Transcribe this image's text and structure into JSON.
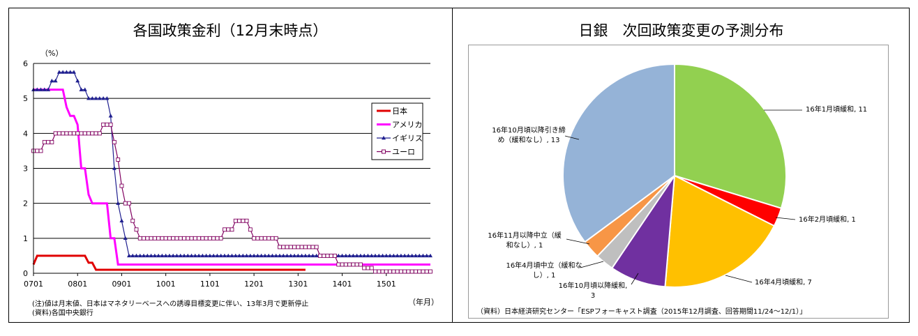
{
  "left_panel": {
    "title": "各国政策金利（12月末時点）",
    "note_line1": "(注)値は月末値、日本はマネタリーベースへの誘導目標変更に伴い、13年3月で更新停止",
    "note_line2": "(資料)各国中央銀行",
    "xunit": "（年月）"
  },
  "right_panel": {
    "title": "日銀　次回政策変更の予測分布",
    "source": "（資料）日本経済研究センター「ESPフォーキャスト調査（2015年12月調査、回答期間11/24～12/1）」"
  },
  "chart_data": [
    {
      "type": "line",
      "title": "各国政策金利（12月末時点）",
      "ylabel": "（%）",
      "xlabel": "（年月）",
      "ylim": [
        0,
        6
      ],
      "xlim": [
        0,
        108
      ],
      "yticks": [
        "0",
        "1",
        "2",
        "3",
        "4",
        "5",
        "6"
      ],
      "xtick_labels": [
        "0701",
        "0801",
        "0901",
        "1001",
        "1101",
        "1201",
        "1301",
        "1401",
        "1501"
      ],
      "grid": true,
      "legend_position": "right",
      "series": [
        {
          "name": "日本",
          "color": "#e00000",
          "marker": "none",
          "points": [
            [
              0,
              0.25
            ],
            [
              1,
              0.5
            ],
            [
              14,
              0.5
            ],
            [
              15,
              0.3
            ],
            [
              16,
              0.3
            ],
            [
              17,
              0.1
            ],
            [
              74,
              0.1
            ]
          ]
        },
        {
          "name": "アメリカ",
          "color": "#ff00ff",
          "marker": "none",
          "points": [
            [
              0,
              5.25
            ],
            [
              8,
              5.25
            ],
            [
              9,
              4.75
            ],
            [
              10,
              4.5
            ],
            [
              11,
              4.5
            ],
            [
              12,
              4.25
            ],
            [
              13,
              3.0
            ],
            [
              14,
              3.0
            ],
            [
              15,
              2.25
            ],
            [
              16,
              2.0
            ],
            [
              20,
              2.0
            ],
            [
              21,
              1.0
            ],
            [
              22,
              1.0
            ],
            [
              23,
              0.25
            ],
            [
              108,
              0.25
            ]
          ]
        },
        {
          "name": "イギリス",
          "color": "#1f1f8f",
          "marker": "triangle",
          "points": [
            [
              0,
              5.25
            ],
            [
              4,
              5.25
            ],
            [
              5,
              5.5
            ],
            [
              6,
              5.5
            ],
            [
              7,
              5.75
            ],
            [
              11,
              5.75
            ],
            [
              12,
              5.5
            ],
            [
              13,
              5.25
            ],
            [
              14,
              5.25
            ],
            [
              15,
              5.0
            ],
            [
              20,
              5.0
            ],
            [
              21,
              4.5
            ],
            [
              22,
              3.0
            ],
            [
              23,
              2.0
            ],
            [
              24,
              1.5
            ],
            [
              25,
              1.0
            ],
            [
              26,
              0.5
            ],
            [
              108,
              0.5
            ]
          ]
        },
        {
          "name": "ユーロ",
          "color": "#800060",
          "marker": "square",
          "points": [
            [
              0,
              3.5
            ],
            [
              2,
              3.5
            ],
            [
              3,
              3.75
            ],
            [
              5,
              3.75
            ],
            [
              6,
              4.0
            ],
            [
              18,
              4.0
            ],
            [
              19,
              4.25
            ],
            [
              21,
              4.25
            ],
            [
              22,
              3.75
            ],
            [
              23,
              3.25
            ],
            [
              24,
              2.5
            ],
            [
              25,
              2.0
            ],
            [
              26,
              2.0
            ],
            [
              27,
              1.5
            ],
            [
              28,
              1.25
            ],
            [
              29,
              1.0
            ],
            [
              51,
              1.0
            ],
            [
              52,
              1.25
            ],
            [
              54,
              1.25
            ],
            [
              55,
              1.5
            ],
            [
              58,
              1.5
            ],
            [
              59,
              1.25
            ],
            [
              60,
              1.0
            ],
            [
              66,
              1.0
            ],
            [
              67,
              0.75
            ],
            [
              77,
              0.75
            ],
            [
              78,
              0.5
            ],
            [
              82,
              0.5
            ],
            [
              83,
              0.25
            ],
            [
              89,
              0.25
            ],
            [
              90,
              0.15
            ],
            [
              92,
              0.15
            ],
            [
              93,
              0.05
            ],
            [
              108,
              0.05
            ]
          ]
        }
      ]
    },
    {
      "type": "pie",
      "title": "日銀　次回政策変更の予測分布",
      "slices": [
        {
          "label": "16年1月頃緩和, 11",
          "value": 11,
          "color": "#92d050"
        },
        {
          "label": "16年2月頃緩和, 1",
          "value": 1,
          "color": "#ff0000"
        },
        {
          "label": "16年4月頃緩和, 7",
          "value": 7,
          "color": "#ffc000"
        },
        {
          "label": "16年10月頃以降緩和, 3",
          "value": 3,
          "color": "#7030a0"
        },
        {
          "label": "16年4月頃中立（緩和なし）, 1",
          "value": 1,
          "color": "#bfbfbf"
        },
        {
          "label": "16年11月以降中立（緩和なし）, 1",
          "value": 1,
          "color": "#f79646"
        },
        {
          "label": "16年10月頃以降引き締め（緩和なし）, 13",
          "value": 13,
          "color": "#95b3d7"
        }
      ]
    }
  ]
}
